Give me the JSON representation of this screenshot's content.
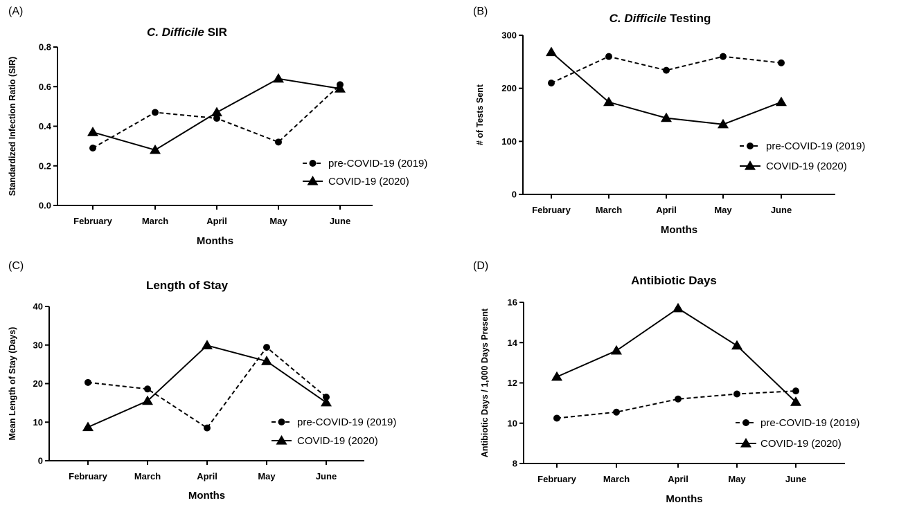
{
  "figure": {
    "panel_letters": [
      "(A)",
      "(B)",
      "(C)",
      "(D)"
    ],
    "legend_labels": [
      "pre-COVID-19 (2019)",
      "COVID-19 (2020)"
    ]
  },
  "chart_data": [
    {
      "panel": "(A)",
      "type": "line",
      "title": "C.  Difficile SIR",
      "title_italic": "C.  Difficile",
      "title_rest": " SIR",
      "xlabel": "Months",
      "ylabel": "Standardized Infection Ratio (SIR)",
      "categories": [
        "February",
        "March",
        "April",
        "May",
        "June"
      ],
      "ylim": [
        0,
        0.8
      ],
      "yticks": [
        "0.0",
        "0.2",
        "0.4",
        "0.6",
        "0.8"
      ],
      "legend_position": "right",
      "series": [
        {
          "name": "pre-COVID-19 (2019)",
          "marker": "circle",
          "line": "dashed",
          "values": [
            0.29,
            0.47,
            0.44,
            0.32,
            0.61
          ]
        },
        {
          "name": "COVID-19 (2020)",
          "marker": "triangle",
          "line": "solid",
          "values": [
            0.37,
            0.28,
            0.47,
            0.64,
            0.59
          ]
        }
      ]
    },
    {
      "panel": "(B)",
      "type": "line",
      "title": "C. Difficile Testing",
      "title_italic": "C. Difficile",
      "title_rest": " Testing",
      "xlabel": "Months",
      "ylabel": "# of Tests Sent",
      "categories": [
        "February",
        "March",
        "April",
        "May",
        "June"
      ],
      "ylim": [
        0,
        300
      ],
      "yticks": [
        "0",
        "100",
        "200",
        "300"
      ],
      "legend_position": "right",
      "series": [
        {
          "name": "pre-COVID-19 (2019)",
          "marker": "circle",
          "line": "dashed",
          "values": [
            210,
            260,
            234,
            260,
            248
          ]
        },
        {
          "name": "COVID-19 (2020)",
          "marker": "triangle",
          "line": "solid",
          "values": [
            268,
            174,
            144,
            132,
            174
          ]
        }
      ]
    },
    {
      "panel": "(C)",
      "type": "line",
      "title": "Length of Stay",
      "title_italic": "",
      "title_rest": "Length of Stay",
      "xlabel": "Months",
      "ylabel": "Mean Length of  Stay (Days)",
      "categories": [
        "February",
        "March",
        "April",
        "May",
        "June"
      ],
      "ylim": [
        0,
        40
      ],
      "yticks": [
        "0",
        "10",
        "20",
        "30",
        "40"
      ],
      "legend_position": "right",
      "series": [
        {
          "name": "pre-COVID-19 (2019)",
          "marker": "circle",
          "line": "dashed",
          "values": [
            20.3,
            18.6,
            8.5,
            29.4,
            16.5
          ]
        },
        {
          "name": "COVID-19 (2020)",
          "marker": "triangle",
          "line": "solid",
          "values": [
            8.7,
            15.5,
            29.9,
            25.8,
            15.1
          ]
        }
      ]
    },
    {
      "panel": "(D)",
      "type": "line",
      "title": "Antibiotic Days",
      "title_italic": "",
      "title_rest": "Antibiotic Days",
      "xlabel": "Months",
      "ylabel": "Antibiotic Days / 1,000 Days  Present",
      "categories": [
        "February",
        "March",
        "April",
        "May",
        "June"
      ],
      "ylim": [
        8,
        16
      ],
      "yticks": [
        "8",
        "10",
        "12",
        "14",
        "16"
      ],
      "legend_position": "right",
      "series": [
        {
          "name": "pre-COVID-19 (2019)",
          "marker": "circle",
          "line": "dashed",
          "values": [
            10.25,
            10.55,
            11.2,
            11.45,
            11.6
          ]
        },
        {
          "name": "COVID-19 (2020)",
          "marker": "triangle",
          "line": "solid",
          "values": [
            12.3,
            13.6,
            15.7,
            13.85,
            11.05
          ]
        }
      ]
    }
  ]
}
